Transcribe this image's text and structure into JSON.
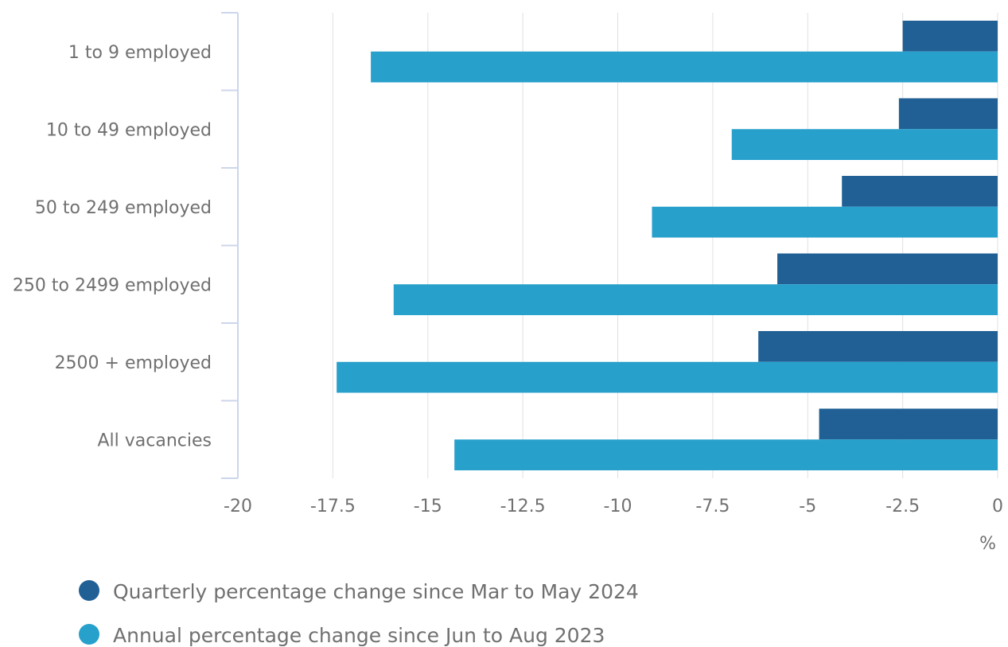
{
  "chart_data": {
    "type": "bar",
    "orientation": "horizontal",
    "categories": [
      "1 to 9 employed",
      "10 to 49 employed",
      "50 to 249 employed",
      "250 to 2499 employed",
      "2500 + employed",
      "All vacancies"
    ],
    "series": [
      {
        "name": "Quarterly percentage change since Mar to May 2024",
        "color": "#206095",
        "values": [
          -2.5,
          -2.6,
          -4.1,
          -5.8,
          -6.3,
          -4.7
        ]
      },
      {
        "name": "Annual percentage change since Jun to Aug 2023",
        "color": "#27a0cc",
        "values": [
          -16.5,
          -7.0,
          -9.1,
          -15.9,
          -17.4,
          -14.3
        ]
      }
    ],
    "x_label": "%",
    "xlim": [
      -20,
      0
    ],
    "xticks": [
      -20,
      -17.5,
      -15,
      -12.5,
      -10,
      -7.5,
      -5,
      -2.5,
      0
    ],
    "grid": true,
    "legend": "bottom"
  }
}
